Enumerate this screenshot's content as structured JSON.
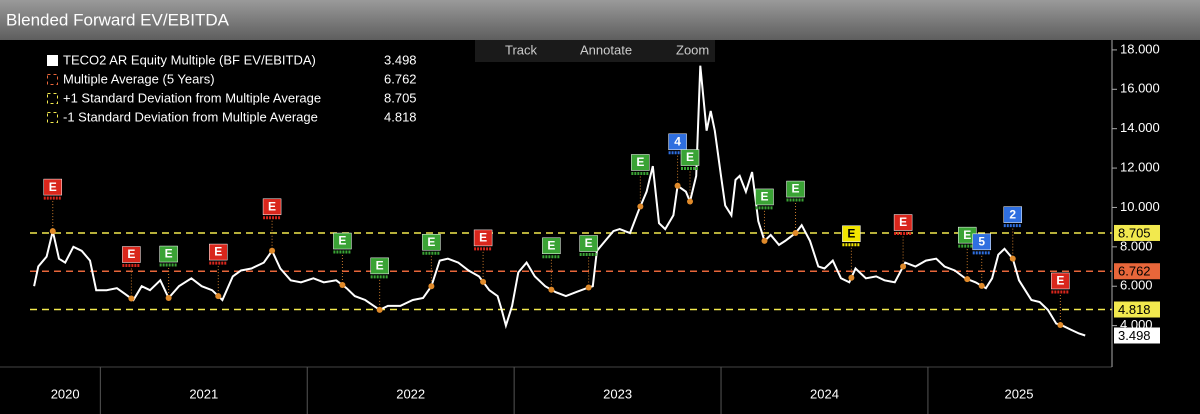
{
  "title": "Blended Forward EV/EBITDA",
  "toolbar": [
    "Track",
    "Annotate",
    "Zoom"
  ],
  "chart_data": {
    "type": "line",
    "x": [
      2020.68,
      2020.7,
      2020.74,
      2020.77,
      2020.8,
      2020.83,
      2020.87,
      2020.91,
      2020.95,
      2020.98,
      2021.03,
      2021.08,
      2021.12,
      2021.16,
      2021.2,
      2021.24,
      2021.29,
      2021.33,
      2021.38,
      2021.44,
      2021.49,
      2021.54,
      2021.59,
      2021.64,
      2021.68,
      2021.73,
      2021.79,
      2021.83,
      2021.87,
      2021.92,
      2021.97,
      2022.03,
      2022.08,
      2022.14,
      2022.19,
      2022.23,
      2022.28,
      2022.35,
      2022.39,
      2022.45,
      2022.51,
      2022.56,
      2022.6,
      2022.64,
      2022.68,
      2022.73,
      2022.78,
      2022.83,
      2022.88,
      2022.92,
      2022.94,
      2022.96,
      2022.99,
      2023.02,
      2023.06,
      2023.1,
      2023.15,
      2023.2,
      2023.25,
      2023.3,
      2023.35,
      2023.38,
      2023.4,
      2023.44,
      2023.48,
      2023.51,
      2023.56,
      2023.6,
      2023.64,
      2023.67,
      2023.7,
      2023.73,
      2023.77,
      2023.79,
      2023.83,
      2023.85,
      2023.88,
      2023.9,
      2023.93,
      2023.95,
      2023.97,
      2024.0,
      2024.02,
      2024.05,
      2024.07,
      2024.09,
      2024.12,
      2024.15,
      2024.18,
      2024.21,
      2024.24,
      2024.28,
      2024.31,
      2024.36,
      2024.39,
      2024.43,
      2024.47,
      2024.5,
      2024.54,
      2024.58,
      2024.62,
      2024.65,
      2024.7,
      2024.75,
      2024.79,
      2024.84,
      2024.89,
      2024.94,
      2024.99,
      2025.04,
      2025.08,
      2025.13,
      2025.18,
      2025.23,
      2025.28,
      2025.31,
      2025.34,
      2025.37,
      2025.41,
      2025.44,
      2025.47,
      2025.5,
      2025.54,
      2025.58,
      2025.62,
      2025.65,
      2025.69,
      2025.73,
      2025.76
    ],
    "series": [
      {
        "name": "TECO2 AR Equity Multiple (BF EV/EBITDA)",
        "color": "#ffffff",
        "values": [
          6.0,
          7.0,
          7.5,
          8.8,
          7.4,
          7.2,
          8.0,
          7.8,
          7.3,
          5.8,
          5.8,
          5.9,
          5.6,
          5.3,
          6.0,
          5.8,
          6.3,
          5.4,
          6.0,
          6.4,
          6.0,
          5.8,
          5.3,
          6.5,
          6.8,
          6.9,
          7.2,
          7.8,
          6.9,
          6.3,
          6.2,
          6.4,
          6.2,
          6.3,
          5.9,
          5.5,
          5.3,
          4.8,
          5.0,
          5.0,
          5.3,
          5.4,
          6.0,
          7.3,
          7.4,
          7.2,
          6.8,
          6.5,
          5.8,
          5.5,
          4.8,
          4.0,
          5.0,
          6.7,
          7.2,
          6.5,
          6.0,
          5.7,
          5.5,
          5.7,
          5.9,
          6.0,
          7.8,
          8.3,
          8.8,
          8.9,
          8.7,
          9.8,
          10.8,
          12.1,
          9.2,
          8.9,
          9.6,
          11.1,
          10.8,
          10.3,
          11.6,
          17.2,
          13.9,
          14.9,
          13.9,
          11.6,
          10.1,
          9.6,
          11.4,
          11.6,
          10.8,
          11.8,
          9.3,
          8.3,
          8.6,
          8.1,
          8.3,
          8.7,
          9.1,
          8.3,
          7.0,
          6.9,
          7.3,
          6.4,
          6.2,
          6.9,
          6.4,
          6.5,
          6.3,
          6.2,
          7.2,
          7.0,
          7.3,
          7.4,
          7.0,
          6.8,
          6.4,
          6.2,
          5.9,
          6.4,
          7.6,
          7.9,
          7.4,
          6.3,
          5.8,
          5.3,
          5.2,
          4.8,
          4.1,
          4.0,
          3.8,
          3.6,
          3.498
        ]
      }
    ],
    "reference_lines": [
      {
        "name": "Multiple Average (5 Years)",
        "color": "#e8663a",
        "value": 6.762
      },
      {
        "name": "+1 Standard Deviation from Multiple Average",
        "color": "#f2e94e",
        "value": 8.705
      },
      {
        "name": "-1 Standard Deviation from Multiple Average",
        "color": "#f2e94e",
        "value": 4.818
      }
    ],
    "events": [
      {
        "x": 2020.77,
        "label": "E",
        "color": "#d9261c"
      },
      {
        "x": 2021.15,
        "label": "E",
        "color": "#d9261c"
      },
      {
        "x": 2021.33,
        "label": "E",
        "color": "#3aa335"
      },
      {
        "x": 2021.57,
        "label": "E",
        "color": "#d9261c"
      },
      {
        "x": 2021.83,
        "label": "E",
        "color": "#d9261c"
      },
      {
        "x": 2022.17,
        "label": "E",
        "color": "#3aa335"
      },
      {
        "x": 2022.35,
        "label": "E",
        "color": "#3aa335"
      },
      {
        "x": 2022.6,
        "label": "E",
        "color": "#3aa335"
      },
      {
        "x": 2022.85,
        "label": "E",
        "color": "#d9261c"
      },
      {
        "x": 2023.18,
        "label": "E",
        "color": "#3aa335"
      },
      {
        "x": 2023.36,
        "label": "E",
        "color": "#3aa335"
      },
      {
        "x": 2023.61,
        "label": "E",
        "color": "#3aa335"
      },
      {
        "x": 2023.79,
        "label": "4",
        "color": "#2f6fe0"
      },
      {
        "x": 2023.85,
        "label": "E",
        "color": "#3aa335"
      },
      {
        "x": 2024.21,
        "label": "E",
        "color": "#3aa335"
      },
      {
        "x": 2024.36,
        "label": "E",
        "color": "#3aa335"
      },
      {
        "x": 2024.63,
        "label": "E",
        "color": "#f2e600"
      },
      {
        "x": 2024.88,
        "label": "E",
        "color": "#d9261c"
      },
      {
        "x": 2025.19,
        "label": "E",
        "color": "#3aa335"
      },
      {
        "x": 2025.26,
        "label": "5",
        "color": "#2f6fe0"
      },
      {
        "x": 2025.41,
        "label": "2",
        "color": "#2f6fe0"
      },
      {
        "x": 2025.64,
        "label": "E",
        "color": "#d9261c"
      }
    ],
    "xlim": [
      2020.66,
      2025.88
    ],
    "xticks": [
      2020,
      2021,
      2022,
      2023,
      2024,
      2025
    ],
    "ylim": [
      2,
      18.3
    ],
    "yticks": [
      {
        "value": 4,
        "label": "4.000"
      },
      {
        "value": 6,
        "label": "6.000"
      },
      {
        "value": 8,
        "label": "8.000"
      },
      {
        "value": 10,
        "label": "10.000"
      },
      {
        "value": 12,
        "label": "12.000"
      },
      {
        "value": 14,
        "label": "14.000"
      },
      {
        "value": 16,
        "label": "16.000"
      },
      {
        "value": 18,
        "label": "18.000"
      }
    ]
  }
}
